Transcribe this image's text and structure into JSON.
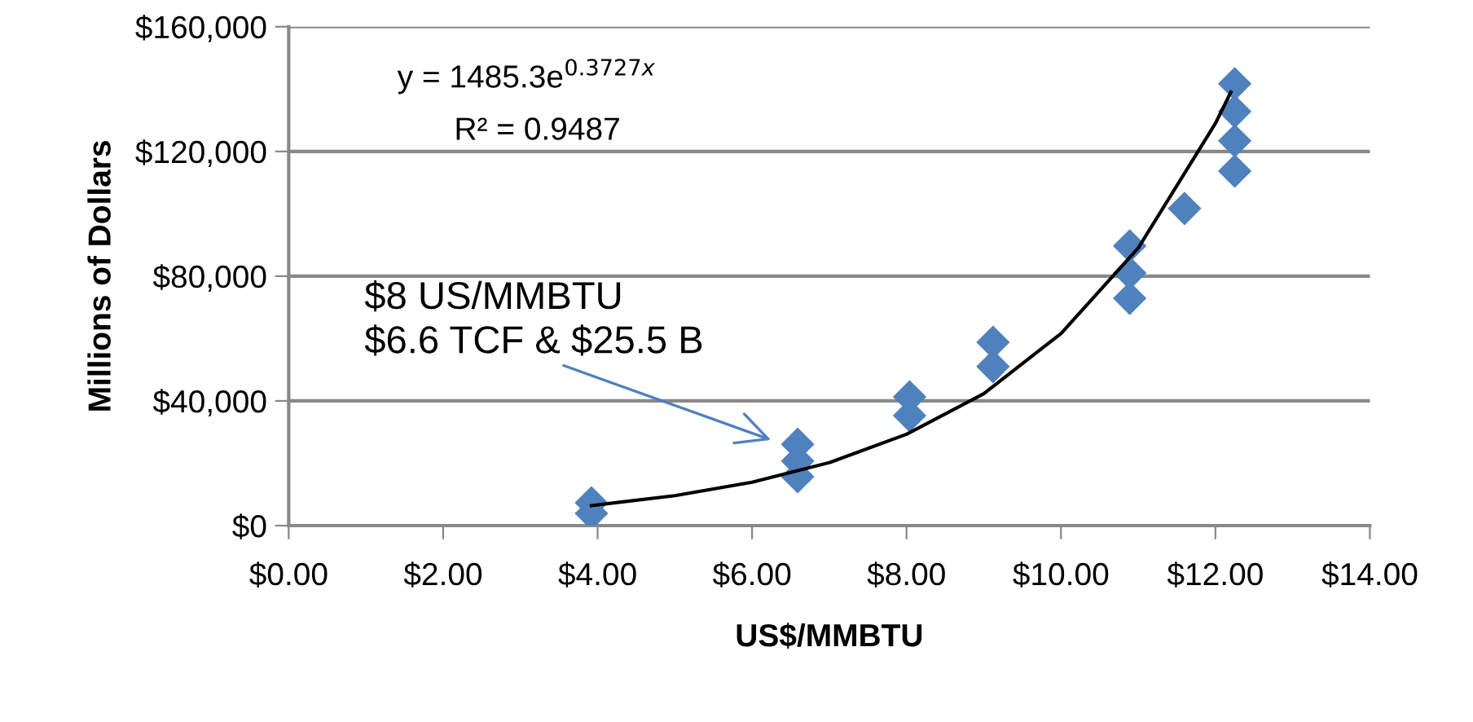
{
  "chart_data": {
    "type": "scatter",
    "xlabel": "US$/MMBTU",
    "ylabel": "Millions of Dollars",
    "series": [
      {
        "color": "#4f81bd",
        "marker": "diamond",
        "x": [
          3.92,
          3.92,
          6.59,
          6.59,
          6.59,
          8.04,
          8.04,
          9.12,
          9.12,
          10.89,
          10.89,
          10.89,
          11.6,
          12.25,
          12.25,
          12.25,
          12.25
        ],
        "values": [
          7300,
          3900,
          26100,
          20700,
          15700,
          41300,
          35300,
          58800,
          51000,
          89700,
          81000,
          72900,
          101700,
          141700,
          132800,
          123400,
          113700
        ]
      },
      {
        "type": "line",
        "color": "#000000",
        "marker": "none",
        "line_style": "solid",
        "x": [
          3.92,
          5,
          6,
          7,
          8,
          9,
          10,
          11,
          12,
          12.2
        ],
        "values": [
          6400,
          9600,
          13900,
          20200,
          29300,
          42300,
          61600,
          89000,
          129000,
          139000
        ]
      }
    ],
    "xlim": [
      0,
      14
    ],
    "ylim": [
      0,
      160000
    ],
    "xticks": [
      {
        "value": 0,
        "label": "$0.00"
      },
      {
        "value": 2,
        "label": "$2.00"
      },
      {
        "value": 4,
        "label": "$4.00"
      },
      {
        "value": 6,
        "label": "$6.00"
      },
      {
        "value": 8,
        "label": "$8.00"
      },
      {
        "value": 10,
        "label": "$10.00"
      },
      {
        "value": 12,
        "label": "$12.00"
      },
      {
        "value": 14,
        "label": "$14.00"
      }
    ],
    "yticks": [
      {
        "value": 0,
        "label": "$0"
      },
      {
        "value": 40000,
        "label": "$40,000"
      },
      {
        "value": 80000,
        "label": "$80,000"
      },
      {
        "value": 120000,
        "label": "$120,000"
      },
      {
        "value": 160000,
        "label": "$160,000"
      }
    ],
    "grid": "y",
    "legend": false,
    "annotations": [
      "y = 1485.3e$^{0.3727x}$",
      "R² = 0.9487",
      {
        "text": "$8 US/MMBTU\n$6.6 TCF & $25.5 B",
        "x": 6.3,
        "y": 27000
      }
    ]
  }
}
